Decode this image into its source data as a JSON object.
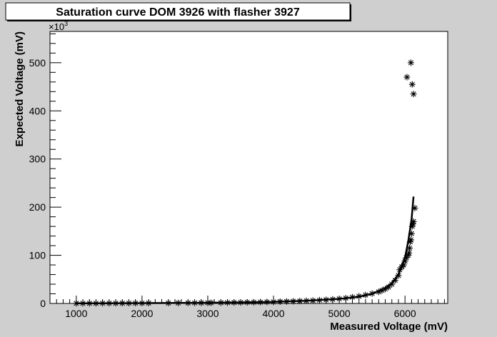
{
  "chart_data": {
    "type": "scatter",
    "title": "Saturation curve DOM 3926 with flasher 3927",
    "xlabel": "Measured Voltage (mV)",
    "ylabel": "Expected Voltage (mV)",
    "y_multiplier_label": "×10",
    "y_multiplier_exponent": "3",
    "xlim": [
      600,
      6650
    ],
    "ylim": [
      0,
      565000
    ],
    "grid": false,
    "marker": "*",
    "x_ticks": [
      1000,
      2000,
      3000,
      4000,
      5000,
      6000
    ],
    "x_tick_labels": [
      "1000",
      "2000",
      "3000",
      "4000",
      "5000",
      "6000"
    ],
    "y_ticks": [
      0,
      100000,
      200000,
      300000,
      400000,
      500000
    ],
    "y_tick_labels": [
      "0",
      "100",
      "200",
      "300",
      "400",
      "500"
    ],
    "points": [
      [
        1000,
        200
      ],
      [
        1100,
        250
      ],
      [
        1200,
        300
      ],
      [
        1300,
        350
      ],
      [
        1400,
        400
      ],
      [
        1500,
        450
      ],
      [
        1600,
        500
      ],
      [
        1700,
        550
      ],
      [
        1800,
        600
      ],
      [
        1900,
        650
      ],
      [
        2000,
        700
      ],
      [
        2100,
        760
      ],
      [
        2400,
        900
      ],
      [
        2550,
        1000
      ],
      [
        2700,
        1100
      ],
      [
        2800,
        1200
      ],
      [
        2900,
        1300
      ],
      [
        3000,
        1400
      ],
      [
        3050,
        1450
      ],
      [
        3200,
        1600
      ],
      [
        3300,
        1750
      ],
      [
        3400,
        1900
      ],
      [
        3500,
        2100
      ],
      [
        3600,
        2300
      ],
      [
        3700,
        2500
      ],
      [
        3800,
        2750
      ],
      [
        3900,
        3000
      ],
      [
        4000,
        3300
      ],
      [
        4100,
        3700
      ],
      [
        4200,
        4100
      ],
      [
        4300,
        4500
      ],
      [
        4400,
        5000
      ],
      [
        4500,
        5500
      ],
      [
        4600,
        6100
      ],
      [
        4700,
        6800
      ],
      [
        4800,
        7600
      ],
      [
        4900,
        8500
      ],
      [
        5000,
        9500
      ],
      [
        5100,
        11000
      ],
      [
        5200,
        13000
      ],
      [
        5300,
        15000
      ],
      [
        5400,
        17500
      ],
      [
        5500,
        20500
      ],
      [
        5600,
        24000
      ],
      [
        5650,
        27000
      ],
      [
        5700,
        30000
      ],
      [
        5750,
        34000
      ],
      [
        5800,
        40000
      ],
      [
        5850,
        48000
      ],
      [
        5900,
        58000
      ],
      [
        5920,
        70000
      ],
      [
        5950,
        76000
      ],
      [
        5980,
        80000
      ],
      [
        6000,
        88000
      ],
      [
        6020,
        95000
      ],
      [
        6050,
        100000
      ],
      [
        6060,
        105000
      ],
      [
        6070,
        115000
      ],
      [
        6080,
        128000
      ],
      [
        6090,
        132000
      ],
      [
        6100,
        145000
      ],
      [
        6110,
        160000
      ],
      [
        6120,
        165000
      ],
      [
        6130,
        170000
      ],
      [
        6150,
        198000
      ],
      [
        6030,
        470000
      ],
      [
        6090,
        500000
      ],
      [
        6110,
        455000
      ],
      [
        6130,
        435000
      ]
    ],
    "fit_x": [
      1000,
      2000,
      3000,
      3500,
      4000,
      4500,
      5000,
      5300,
      5500,
      5700,
      5800,
      5900,
      6000,
      6050,
      6100,
      6130
    ],
    "fit_y": [
      300,
      800,
      1500,
      2200,
      3300,
      5500,
      9500,
      14000,
      20000,
      32000,
      42000,
      60000,
      95000,
      130000,
      175000,
      222000
    ]
  }
}
